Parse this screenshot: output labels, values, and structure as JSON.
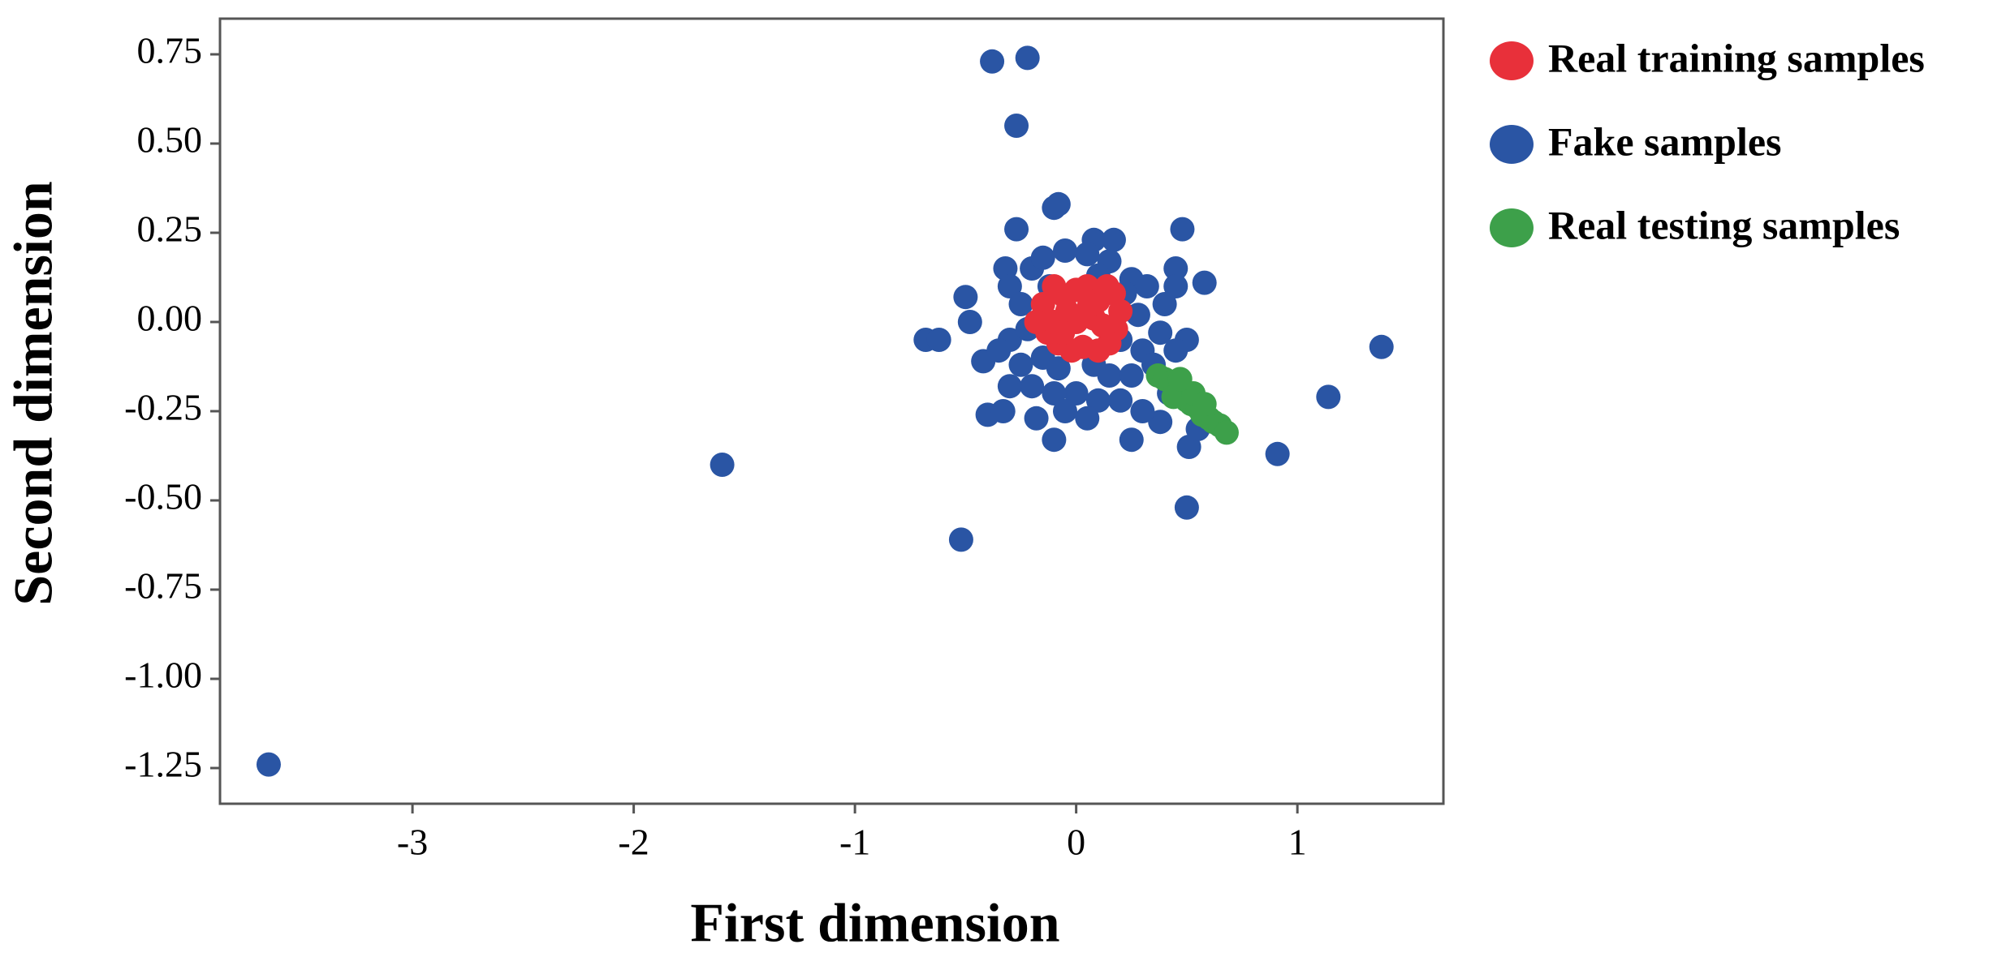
{
  "chart_data": {
    "type": "scatter",
    "x_label": "First dimension",
    "y_label": "Second dimension",
    "xlim": [
      -3.87,
      1.66
    ],
    "ylim": [
      -1.35,
      0.85
    ],
    "xticks": [
      -3,
      -2,
      -1,
      0,
      1
    ],
    "yticks": [
      {
        "value": 0.75,
        "label": "0.75"
      },
      {
        "value": 0.5,
        "label": "0.50"
      },
      {
        "value": 0.25,
        "label": "0.25"
      },
      {
        "value": 0,
        "label": "0.00"
      },
      {
        "value": -0.25,
        "label": "-0.25"
      },
      {
        "value": -0.5,
        "label": "-0.50"
      },
      {
        "value": -0.75,
        "label": "-0.75"
      },
      {
        "value": -1,
        "label": "-1.00"
      },
      {
        "value": -1.25,
        "label": "-1.25"
      }
    ],
    "legend_position": "outside right",
    "series": [
      {
        "name": "Fake samples",
        "color": "#2a55a4",
        "x": [
          -3.65,
          -1.6,
          -0.52,
          -0.38,
          -0.22,
          -0.27,
          1.38,
          1.14,
          0.91,
          0.5,
          0.51,
          -0.68,
          -0.62,
          -0.5,
          -0.48,
          -0.4,
          -0.42,
          -0.1,
          -0.1,
          -0.08,
          0.48,
          0.58,
          0.25,
          0.08,
          0.17,
          -0.27,
          -0.32,
          0.45,
          -0.3,
          -0.25,
          -0.2,
          -0.15,
          -0.05,
          0.05,
          0.15,
          0.25,
          0.32,
          0.4,
          0.45,
          0.38,
          0.3,
          0.35,
          0.42,
          0.38,
          0.3,
          0.2,
          0.1,
          0.0,
          -0.1,
          -0.2,
          -0.25,
          -0.3,
          -0.35,
          -0.3,
          -0.18,
          -0.05,
          0.05,
          0.15,
          0.25,
          -0.15,
          -0.22,
          -0.12,
          0.1,
          0.2,
          0.28,
          0.5,
          0.55,
          -0.33,
          0.45,
          0.22,
          -0.08,
          0.08
        ],
        "y": [
          -1.24,
          -0.4,
          -0.61,
          0.73,
          0.74,
          0.55,
          -0.07,
          -0.21,
          -0.37,
          -0.52,
          -0.35,
          -0.05,
          -0.05,
          0.07,
          0.0,
          -0.26,
          -0.11,
          -0.33,
          0.32,
          0.33,
          0.26,
          0.11,
          -0.33,
          0.23,
          0.23,
          0.26,
          0.15,
          0.15,
          0.1,
          0.05,
          0.15,
          0.18,
          0.2,
          0.19,
          0.17,
          0.12,
          0.1,
          0.05,
          0.1,
          -0.03,
          -0.08,
          -0.12,
          -0.2,
          -0.28,
          -0.25,
          -0.22,
          -0.22,
          -0.2,
          -0.2,
          -0.18,
          -0.12,
          -0.05,
          -0.08,
          -0.18,
          -0.27,
          -0.25,
          -0.27,
          -0.15,
          -0.15,
          -0.1,
          -0.02,
          0.1,
          0.13,
          -0.05,
          0.02,
          -0.05,
          -0.3,
          -0.25,
          -0.08,
          0.08,
          -0.13,
          -0.12
        ]
      },
      {
        "name": "Real training samples",
        "color": "#e8303a",
        "x": [
          -0.15,
          -0.1,
          -0.05,
          0,
          0.05,
          0.1,
          0.17,
          0.2,
          0.18,
          0.15,
          0.1,
          0.03,
          -0.02,
          -0.08,
          -0.13,
          -0.18,
          -0.1,
          0,
          0.08,
          -0.04,
          0.12,
          -0.06,
          0.06,
          0.14
        ],
        "y": [
          0.05,
          0.1,
          0.07,
          0.09,
          0.1,
          0.06,
          0.08,
          0.03,
          -0.02,
          -0.06,
          -0.08,
          -0.07,
          -0.08,
          -0.06,
          -0.03,
          0.0,
          0.0,
          0,
          0.01,
          0.03,
          -0.01,
          -0.03,
          0.05,
          0.1
        ]
      },
      {
        "name": "Real testing samples",
        "color": "#3da04a",
        "x": [
          0.37,
          0.4,
          0.43,
          0.45,
          0.48,
          0.5,
          0.52,
          0.55,
          0.57,
          0.6,
          0.62,
          0.65,
          0.68,
          0.44,
          0.53,
          0.58,
          0.47
        ],
        "y": [
          -0.15,
          -0.16,
          -0.17,
          -0.19,
          -0.2,
          -0.22,
          -0.23,
          -0.24,
          -0.26,
          -0.27,
          -0.28,
          -0.29,
          -0.31,
          -0.21,
          -0.2,
          -0.23,
          -0.16
        ]
      }
    ],
    "legend_order": [
      1,
      0,
      2
    ]
  }
}
